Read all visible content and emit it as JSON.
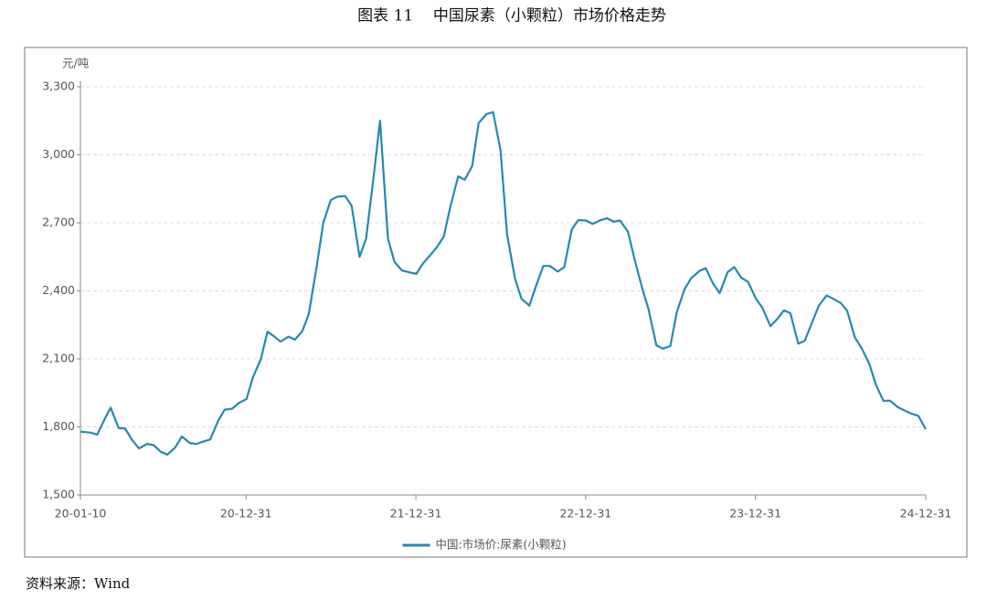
{
  "chart_data": {
    "type": "line",
    "title": "图表 11    中国尿素（小颗粒）市场价格走势",
    "y_label": "元/吨",
    "x": [
      "20-01-10",
      "20-01-15",
      "20-02-01",
      "20-02-15",
      "20-03-01",
      "20-03-15",
      "20-04-01",
      "20-04-15",
      "20-05-01",
      "20-05-15",
      "20-06-01",
      "20-06-15",
      "20-07-01",
      "20-07-15",
      "20-08-01",
      "20-08-15",
      "20-09-01",
      "20-09-15",
      "20-10-01",
      "20-10-15",
      "20-11-01",
      "20-11-15",
      "20-12-01",
      "20-12-15",
      "21-01-01",
      "21-01-15",
      "21-02-01",
      "21-02-15",
      "21-03-01",
      "21-03-15",
      "21-04-01",
      "21-04-15",
      "21-05-01",
      "21-05-15",
      "21-06-01",
      "21-06-15",
      "21-07-01",
      "21-07-15",
      "21-08-01",
      "21-08-15",
      "21-09-01",
      "21-09-15",
      "21-10-01",
      "21-10-15",
      "21-11-01",
      "21-11-15",
      "21-12-01",
      "21-12-15",
      "22-01-01",
      "22-01-15",
      "22-02-01",
      "22-02-15",
      "22-03-01",
      "22-03-15",
      "22-04-01",
      "22-04-15",
      "22-05-01",
      "22-05-15",
      "22-06-01",
      "22-06-15",
      "22-07-01",
      "22-07-15",
      "22-08-01",
      "22-08-15",
      "22-09-01",
      "22-09-15",
      "22-10-01",
      "22-10-15",
      "22-11-01",
      "22-11-15",
      "22-12-01",
      "22-12-15",
      "23-01-01",
      "23-01-15",
      "23-02-01",
      "23-02-15",
      "23-03-01",
      "23-03-15",
      "23-04-01",
      "23-04-15",
      "23-05-01",
      "23-05-15",
      "23-06-01",
      "23-06-15",
      "23-07-01",
      "23-07-15",
      "23-08-01",
      "23-08-15",
      "23-09-01",
      "23-09-15",
      "23-10-01",
      "23-10-15",
      "23-11-01",
      "23-11-15",
      "23-12-01",
      "23-12-15",
      "24-01-01",
      "24-01-15",
      "24-02-01",
      "24-02-15",
      "24-03-01",
      "24-03-15",
      "24-04-01",
      "24-04-15",
      "24-05-01",
      "24-05-15",
      "24-06-01",
      "24-06-15",
      "24-07-01",
      "24-07-15",
      "24-08-01",
      "24-08-15",
      "24-09-01",
      "24-09-15",
      "24-10-01",
      "24-10-15",
      "24-11-01",
      "24-11-15",
      "24-12-01",
      "24-12-15",
      "24-12-31"
    ],
    "series": [
      {
        "name": "中国:市场价:尿素(小颗粒)",
        "color": "#2389b0",
        "values": [
          1780,
          1778,
          1775,
          1766,
          1830,
          1885,
          1795,
          1793,
          1740,
          1705,
          1725,
          1720,
          1690,
          1678,
          1710,
          1758,
          1729,
          1725,
          1736,
          1745,
          1827,
          1876,
          1880,
          1905,
          1923,
          2020,
          2100,
          2220,
          2200,
          2176,
          2198,
          2185,
          2222,
          2300,
          2510,
          2700,
          2800,
          2815,
          2818,
          2775,
          2550,
          2630,
          2900,
          3150,
          2630,
          2528,
          2490,
          2483,
          2475,
          2520,
          2560,
          2595,
          2640,
          2770,
          2905,
          2890,
          2950,
          3140,
          3180,
          3188,
          3020,
          2650,
          2455,
          2365,
          2335,
          2420,
          2510,
          2510,
          2485,
          2505,
          2670,
          2712,
          2710,
          2695,
          2712,
          2720,
          2705,
          2710,
          2660,
          2540,
          2415,
          2320,
          2160,
          2145,
          2157,
          2307,
          2410,
          2456,
          2487,
          2500,
          2432,
          2390,
          2482,
          2505,
          2457,
          2440,
          2365,
          2325,
          2244,
          2274,
          2314,
          2302,
          2167,
          2180,
          2263,
          2334,
          2380,
          2365,
          2347,
          2312,
          2193,
          2148,
          2076,
          1985,
          1915,
          1916,
          1887,
          1873,
          1858,
          1849,
          1790
        ]
      }
    ],
    "xlim": [
      "20-01-10",
      "24-12-31"
    ],
    "xticks": [
      "20-01-10",
      "20-12-31",
      "21-12-31",
      "22-12-31",
      "23-12-31",
      "24-12-31"
    ],
    "ylim": [
      1500,
      3300
    ],
    "yticks": [
      {
        "value": 1500,
        "label": "1,500"
      },
      {
        "value": 1800,
        "label": "1,800"
      },
      {
        "value": 2100,
        "label": "2,100"
      },
      {
        "value": 2400,
        "label": "2,400"
      },
      {
        "value": 2700,
        "label": "2,700"
      },
      {
        "value": 3000,
        "label": "3,000"
      },
      {
        "value": 3300,
        "label": "3,300"
      }
    ],
    "grid": true,
    "legend": "bottom"
  },
  "source": "资料来源：Wind"
}
